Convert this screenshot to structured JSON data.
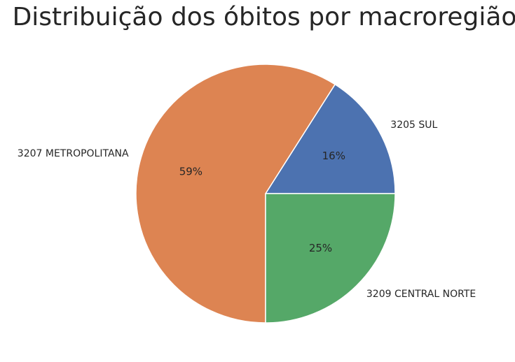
{
  "chart_data": {
    "type": "pie",
    "title": "Distribuição dos óbitos por macroregião",
    "categories": [
      "3205 SUL",
      "3207 METROPOLITANA",
      "3209 CENTRAL NORTE"
    ],
    "values": [
      16,
      59,
      25
    ],
    "percent_labels": [
      "16%",
      "59%",
      "25%"
    ],
    "colors": [
      "#4c72b0",
      "#dd8452",
      "#55a868"
    ],
    "slice_edge_color": "#ffffff",
    "start_angle_deg": 0,
    "direction": "counterclockwise",
    "legend": "none"
  }
}
